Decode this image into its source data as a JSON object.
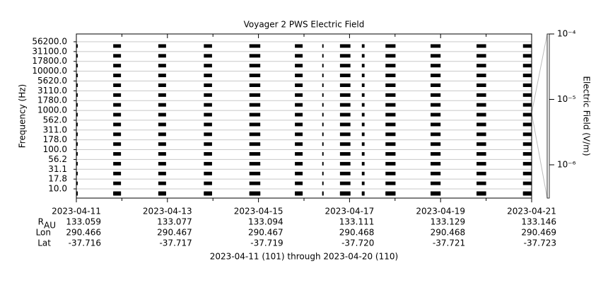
{
  "chart_data": {
    "type": "timeline",
    "title": "Voyager 2 PWS Electric Field",
    "ylabel": "Frequency (Hz)",
    "y2label": "Electric Field (V/m)",
    "categories": [
      "10.0",
      "17.8",
      "31.1",
      "56.2",
      "100.0",
      "178.0",
      "311.0",
      "562.0",
      "1000.0",
      "1780.0",
      "3110.0",
      "5620.0",
      "10000.0",
      "17800.0",
      "31100.0",
      "56200.0"
    ],
    "segments": [
      [
        101.0,
        101.03
      ],
      [
        101.81,
        101.98
      ],
      [
        102.8,
        102.97
      ],
      [
        103.8,
        103.98
      ],
      [
        104.8,
        105.04
      ],
      [
        105.8,
        105.97
      ],
      [
        106.4,
        106.43
      ],
      [
        106.79,
        107.02
      ],
      [
        107.27,
        107.33
      ],
      [
        107.79,
        108.01
      ],
      [
        108.78,
        109.0
      ],
      [
        109.79,
        110.0
      ],
      [
        110.81,
        111.0
      ]
    ],
    "color": "#000000",
    "grid": true,
    "xlim": [
      101,
      111
    ],
    "xticks": [
      {
        "value": 101,
        "label": "2023-04-11"
      },
      {
        "value": 103,
        "label": "2023-04-13"
      },
      {
        "value": 105,
        "label": "2023-04-15"
      },
      {
        "value": 107,
        "label": "2023-04-17"
      },
      {
        "value": 109,
        "label": "2023-04-19"
      },
      {
        "value": 111,
        "label": "2023-04-21"
      }
    ],
    "xminorticks": [
      102,
      104,
      106,
      108,
      110
    ],
    "y2scale": "log",
    "y2lim": [
      3.1e-07,
      0.0001
    ],
    "y2ticks": [
      {
        "value": 0.0001,
        "label": "10⁻⁴"
      },
      {
        "value": 1e-05,
        "label": "10⁻⁵"
      },
      {
        "value": 1e-06,
        "label": "10⁻⁶"
      }
    ],
    "ephemeris": [
      {
        "label": "R",
        "sub": "AU",
        "values": [
          "133.059",
          "133.077",
          "133.094",
          "133.111",
          "133.129",
          "133.146"
        ]
      },
      {
        "label": "Lon",
        "values": [
          "290.466",
          "290.467",
          "290.467",
          "290.468",
          "290.468",
          "290.469"
        ]
      },
      {
        "label": "Lat",
        "values": [
          "-37.716",
          "-37.717",
          "-37.719",
          "-37.720",
          "-37.721",
          "-37.723"
        ]
      }
    ],
    "footer": "2023-04-11 (101) through 2023-04-20 (110)"
  }
}
